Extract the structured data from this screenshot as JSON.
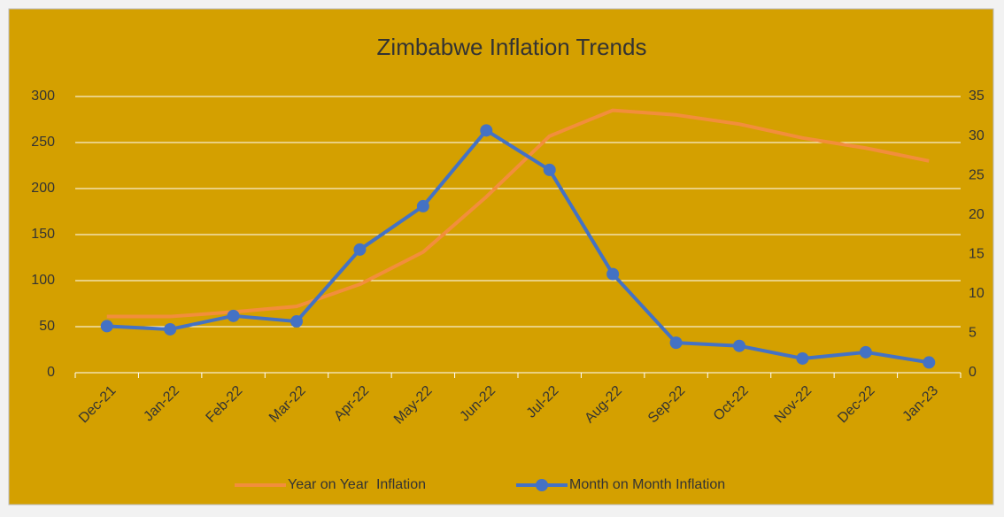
{
  "chart_data": {
    "type": "line",
    "title": "Zimbabwe Inflation Trends",
    "categories": [
      "Dec-21",
      "Jan-22",
      "Feb-22",
      "Mar-22",
      "Apr-22",
      "May-22",
      "Jun-22",
      "Jul-22",
      "Aug-22",
      "Sep-22",
      "Oct-22",
      "Nov-22",
      "Dec-22",
      "Jan-23"
    ],
    "series": [
      {
        "name": "Year on Year  Inflation",
        "color": "#f28e3c",
        "values": [
          61,
          61,
          66,
          72,
          96,
          131,
          191,
          257,
          285,
          280,
          270,
          255,
          244,
          230
        ]
      },
      {
        "name": "Month on Month Inflation",
        "color": "#4472c4",
        "axis": "y2",
        "values": [
          5.9,
          5.5,
          7.2,
          6.5,
          15.6,
          21.1,
          30.7,
          25.7,
          12.5,
          3.8,
          3.4,
          1.8,
          2.6,
          1.3
        ]
      }
    ],
    "ylim": [
      0,
      300
    ],
    "yticks": [
      0,
      50,
      100,
      150,
      200,
      250,
      300
    ],
    "y2lim": [
      0,
      35
    ],
    "y2ticks": [
      0,
      5,
      10,
      15,
      20,
      25,
      30,
      35
    ],
    "grid": true,
    "legend": "bottom"
  }
}
